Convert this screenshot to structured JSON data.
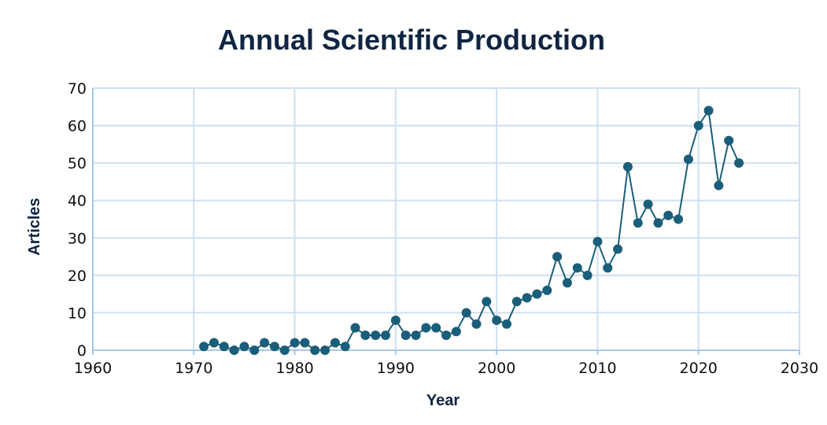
{
  "chart_data": {
    "type": "line",
    "title": "Annual Scientific Production",
    "xlabel": "Year",
    "ylabel": "Articles",
    "xlim": [
      1960,
      2030
    ],
    "ylim": [
      0,
      70
    ],
    "xticks": [
      1960,
      1970,
      1980,
      1990,
      2000,
      2010,
      2020,
      2030
    ],
    "yticks": [
      0,
      10,
      20,
      30,
      40,
      50,
      60,
      70
    ],
    "grid": true,
    "color": "#1a5e7a",
    "series": [
      {
        "x": [
          1971,
          1972,
          1973,
          1974,
          1975,
          1976,
          1977,
          1978,
          1979,
          1980,
          1981,
          1982,
          1983,
          1984,
          1985,
          1986,
          1987,
          1988,
          1989,
          1990,
          1991,
          1992,
          1993,
          1994,
          1995,
          1996,
          1997,
          1998,
          1999,
          2000,
          2001,
          2002,
          2003,
          2004,
          2005,
          2006,
          2007,
          2008,
          2009,
          2010,
          2011,
          2012,
          2013,
          2014,
          2015,
          2016,
          2017,
          2018,
          2019,
          2020,
          2021,
          2022,
          2023,
          2024
        ],
        "y": [
          1,
          2,
          1,
          0,
          1,
          0,
          2,
          1,
          0,
          2,
          2,
          0,
          0,
          2,
          1,
          6,
          4,
          4,
          4,
          8,
          4,
          4,
          6,
          6,
          4,
          5,
          10,
          7,
          13,
          8,
          7,
          13,
          14,
          15,
          16,
          25,
          18,
          22,
          20,
          29,
          22,
          27,
          49,
          34,
          39,
          34,
          36,
          35,
          51,
          60,
          64,
          44,
          56,
          50
        ]
      }
    ]
  }
}
